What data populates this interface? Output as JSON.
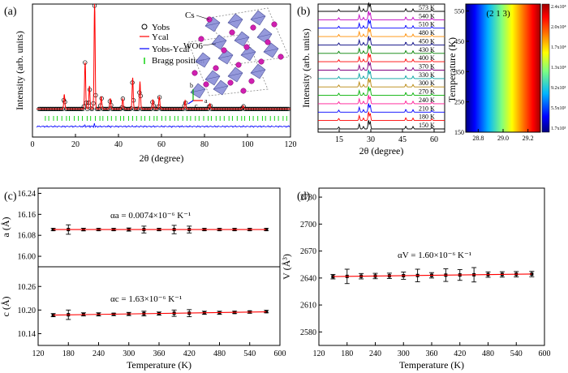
{
  "chart_data": [
    {
      "panel": "(a)",
      "type": "scatter",
      "xlabel": "2θ (degree)",
      "ylabel": "Intensity (arb. units)",
      "xlim": [
        0,
        120
      ],
      "xticks": [
        "0",
        "20",
        "40",
        "60",
        "80",
        "100",
        "120"
      ],
      "legend": {
        "position": "top-right",
        "entries": [
          "Yobs",
          "Ycal",
          "Yobs-Ycal",
          "Bragg position"
        ]
      },
      "annotations": [
        "Cs",
        "WO6",
        "b",
        "a",
        "c"
      ],
      "series": [
        {
          "name": "Yobs",
          "peaks": [
            [
              14.8,
              0.14
            ],
            [
              24.5,
              0.45
            ],
            [
              26.5,
              0.22
            ],
            [
              28.9,
              1.0
            ],
            [
              32.0,
              0.12
            ],
            [
              36.2,
              0.1
            ],
            [
              42.0,
              0.1
            ],
            [
              46.6,
              0.3
            ],
            [
              50.0,
              0.26
            ],
            [
              56.0,
              0.09
            ],
            [
              59.0,
              0.12
            ],
            [
              71.0,
              0.08
            ],
            [
              82.5,
              0.05
            ],
            [
              98.0,
              0.03
            ]
          ],
          "baseline": 0.02
        }
      ]
    },
    {
      "panel": "(b)",
      "type": "line",
      "xlabel": "2θ (degree)",
      "ylabel": "Intensity (arb. units)",
      "xlim": [
        5,
        65
      ],
      "xticks": [
        "15",
        "30",
        "45",
        "60"
      ],
      "series_names": [
        "573 K",
        "540 K",
        "510 K",
        "480 K",
        "450 K",
        "430 K",
        "400 K",
        "370 K",
        "330 K",
        "300 K",
        "270 K",
        "240 K",
        "210 K",
        "180 K",
        "150 K"
      ],
      "series_colors": [
        "#000000",
        "#c000c0",
        "#0000ff",
        "#ff8c00",
        "#000080",
        "#008000",
        "#ff0000",
        "#800080",
        "#00a0a0",
        "#b8860b",
        "#00b000",
        "#ff1493",
        "#0000ff",
        "#ff0000",
        "#000000"
      ]
    },
    {
      "panel": "(b-inset)",
      "type": "heatmap",
      "title": "(2 1 3)",
      "xlabel": "",
      "ylabel": "Temperature (K)",
      "xlim": [
        28.7,
        29.3
      ],
      "ylim": [
        150,
        573
      ],
      "xticks": [
        "28.8",
        "29.0",
        "29.2"
      ],
      "yticks": [
        "150",
        "250",
        "350",
        "450",
        "550"
      ],
      "peak_center": 29.0,
      "colorbar": [
        "1.7x10³",
        "5.5x10³",
        "9.2x10³",
        "1.3x10⁴",
        "1.7x10⁴",
        "2.0x10⁴",
        "2.4x10⁴"
      ]
    },
    {
      "panel": "(c)",
      "type": "scatter",
      "xlabel": "Temperature (K)",
      "xticks": [
        "120",
        "180",
        "240",
        "300",
        "360",
        "420",
        "480",
        "540",
        "600"
      ],
      "xlim": [
        120,
        600
      ],
      "subplots": [
        {
          "ylabel": "a (Å)",
          "ylim": [
            15.96,
            16.26
          ],
          "yticks": [
            "16.00",
            "16.08",
            "16.16",
            "16.24"
          ],
          "annotation": "αa = 0.0074×10⁻⁶ K⁻¹",
          "x": [
            150,
            180,
            210,
            240,
            270,
            300,
            330,
            360,
            390,
            420,
            450,
            480,
            510,
            540,
            573
          ],
          "y": [
            16.102,
            16.102,
            16.102,
            16.102,
            16.102,
            16.102,
            16.102,
            16.102,
            16.102,
            16.102,
            16.102,
            16.102,
            16.102,
            16.102,
            16.102
          ],
          "err": [
            0.004,
            0.018,
            0.005,
            0.004,
            0.004,
            0.006,
            0.013,
            0.004,
            0.016,
            0.013,
            0.004,
            0.004,
            0.004,
            0.004,
            0.004
          ]
        },
        {
          "ylabel": "c (Å)",
          "ylim": [
            10.11,
            10.31
          ],
          "yticks": [
            "10.14",
            "10.20",
            "10.26"
          ],
          "annotation": "αc = 1.63×10⁻⁶ K⁻¹",
          "x": [
            150,
            180,
            210,
            240,
            270,
            300,
            330,
            360,
            390,
            420,
            450,
            480,
            510,
            540,
            573
          ],
          "y": [
            10.187,
            10.188,
            10.189,
            10.189,
            10.189,
            10.19,
            10.191,
            10.191,
            10.192,
            10.192,
            10.193,
            10.193,
            10.194,
            10.195,
            10.196
          ],
          "err": [
            0.004,
            0.012,
            0.004,
            0.004,
            0.003,
            0.004,
            0.006,
            0.004,
            0.008,
            0.009,
            0.004,
            0.004,
            0.003,
            0.003,
            0.003
          ]
        }
      ]
    },
    {
      "panel": "(d)",
      "type": "scatter",
      "xlabel": "Temperature (K)",
      "ylabel": "V (Å³)",
      "xlim": [
        120,
        600
      ],
      "ylim": [
        2565,
        2740
      ],
      "xticks": [
        "120",
        "180",
        "240",
        "300",
        "360",
        "420",
        "480",
        "540",
        "600"
      ],
      "yticks": [
        "2580",
        "2610",
        "2640",
        "2670",
        "2700",
        "2730"
      ],
      "annotation": "αV = 1.60×10⁻⁶ K⁻¹",
      "x": [
        150,
        180,
        210,
        240,
        270,
        300,
        330,
        360,
        390,
        420,
        450,
        480,
        510,
        540,
        573
      ],
      "y": [
        2641.5,
        2641.8,
        2642,
        2642.2,
        2642.4,
        2642.6,
        2642.8,
        2643,
        2643.2,
        2643.4,
        2643.6,
        2643.8,
        2644,
        2644.2,
        2644.4
      ],
      "err": [
        2.5,
        8,
        3,
        3,
        3,
        4,
        7,
        3,
        7,
        6,
        8,
        3,
        3,
        3,
        3
      ]
    }
  ]
}
